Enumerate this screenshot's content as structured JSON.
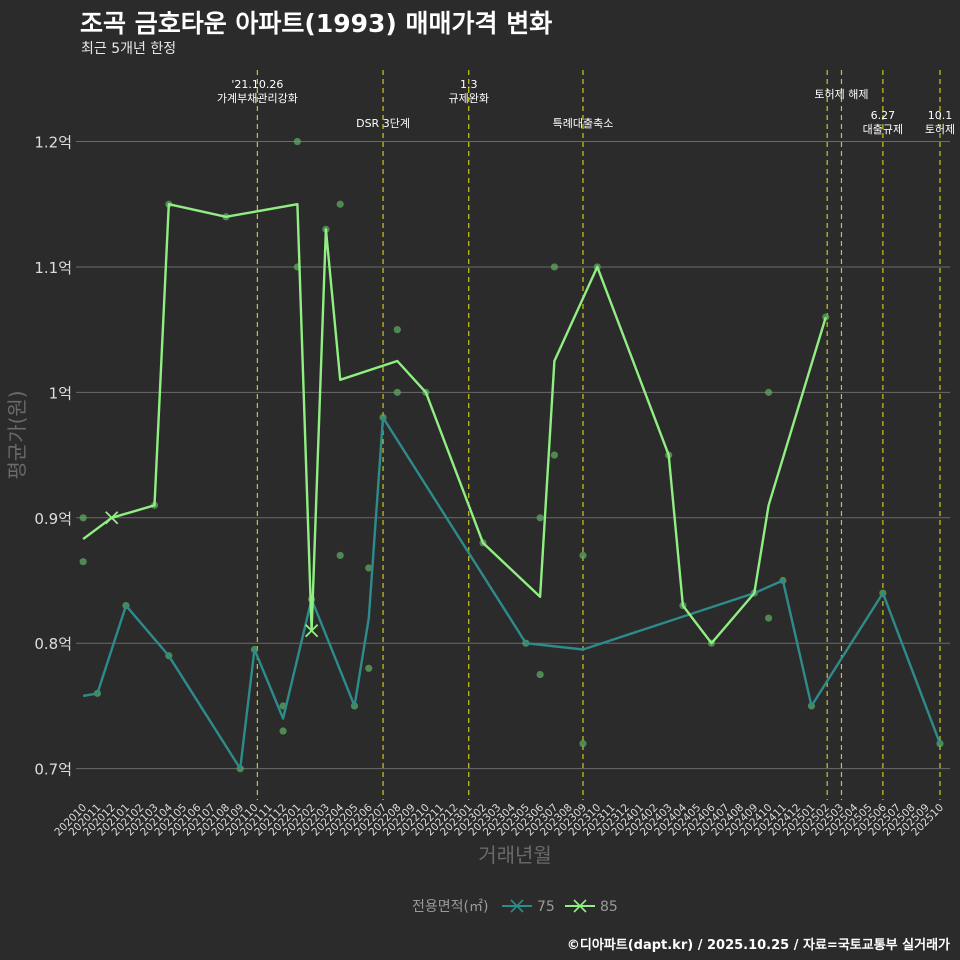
{
  "title": "조곡 금호타운 아파트(1993) 매매가격 변화",
  "subtitle": "최근 5개년 한정",
  "caption": "©디아파트(dapt.kr) / 2025.10.25 / 자료=국토교통부 실거래가",
  "colors": {
    "background": "#2b2b2b",
    "grid": "#6b6b6b",
    "series_75": "#2e8b8b",
    "series_85": "#90ee82",
    "points": "#5ea860",
    "event_line": "#c8c820"
  },
  "chart_data": {
    "type": "line",
    "title": "조곡 금호타운 아파트(1993) 매매가격 변화",
    "xlabel": "거래년월",
    "ylabel": "평균가(원)",
    "ylim": [
      0.675,
      1.265
    ],
    "xlim": [
      -0.5,
      60.7
    ],
    "y_ticks": [
      {
        "value": 0.7,
        "label": "0.7억"
      },
      {
        "value": 0.8,
        "label": "0.8억"
      },
      {
        "value": 0.9,
        "label": "0.9억"
      },
      {
        "value": 1.0,
        "label": "1억"
      },
      {
        "value": 1.1,
        "label": "1.1억"
      },
      {
        "value": 1.2,
        "label": "1.2억"
      }
    ],
    "x_ticks": [
      "202010",
      "202011",
      "202012",
      "202101",
      "202102",
      "202103",
      "202104",
      "202105",
      "202106",
      "202107",
      "202108",
      "202109",
      "202110",
      "202111",
      "202112",
      "202201",
      "202202",
      "202203",
      "202204",
      "202205",
      "202206",
      "202207",
      "202208",
      "202209",
      "202210",
      "202211",
      "202212",
      "202301",
      "202302",
      "202303",
      "202304",
      "202305",
      "202306",
      "202307",
      "202308",
      "202309",
      "202310",
      "202311",
      "202312",
      "202401",
      "202402",
      "202403",
      "202404",
      "202405",
      "202406",
      "202407",
      "202408",
      "202409",
      "202410",
      "202411",
      "202412",
      "202501",
      "202502",
      "202503",
      "202504",
      "202505",
      "202506",
      "202507",
      "202508",
      "202509",
      "202510"
    ],
    "legend": {
      "title": "전용면적(㎡)",
      "items": [
        "75",
        "85"
      ]
    },
    "series": [
      {
        "name": "75",
        "color": "#2e8b8b",
        "points": [
          [
            0,
            0.758
          ],
          [
            1,
            0.76
          ],
          [
            3,
            0.83
          ],
          [
            6,
            0.79
          ],
          [
            11,
            0.7
          ],
          [
            12,
            0.795
          ],
          [
            14,
            0.74
          ],
          [
            16,
            0.835
          ],
          [
            19,
            0.75
          ],
          [
            20,
            0.82
          ],
          [
            21,
            0.98
          ],
          [
            31,
            0.8
          ],
          [
            35,
            0.795
          ],
          [
            47,
            0.84
          ],
          [
            49,
            0.85
          ],
          [
            51,
            0.75
          ],
          [
            56,
            0.84
          ],
          [
            60,
            0.72
          ]
        ]
      },
      {
        "name": "85",
        "color": "#90ee82",
        "points": [
          [
            0,
            0.883
          ],
          [
            2,
            0.9
          ],
          [
            5,
            0.91
          ],
          [
            6,
            1.15
          ],
          [
            10,
            1.14
          ],
          [
            15,
            1.15
          ],
          [
            16,
            0.81
          ],
          [
            17,
            1.13
          ],
          [
            18,
            1.01
          ],
          [
            22,
            1.025
          ],
          [
            24,
            1.0
          ],
          [
            28,
            0.88
          ],
          [
            32,
            0.837
          ],
          [
            33,
            1.025
          ],
          [
            36,
            1.1
          ],
          [
            41,
            0.95
          ],
          [
            42,
            0.83
          ],
          [
            44,
            0.8
          ],
          [
            47,
            0.84
          ],
          [
            48,
            0.91
          ],
          [
            52,
            1.06
          ]
        ]
      }
    ],
    "markers": [
      {
        "series": "85",
        "x": 2,
        "y": 0.9
      },
      {
        "series": "85",
        "x": 16,
        "y": 0.81
      }
    ],
    "scatter_points": [
      [
        0,
        0.9
      ],
      [
        0,
        0.865
      ],
      [
        1,
        0.76
      ],
      [
        3,
        0.83
      ],
      [
        5,
        0.91
      ],
      [
        6,
        1.15
      ],
      [
        6,
        0.79
      ],
      [
        10,
        1.14
      ],
      [
        11,
        0.7
      ],
      [
        12,
        0.795
      ],
      [
        14,
        0.75
      ],
      [
        14,
        0.73
      ],
      [
        15,
        1.2
      ],
      [
        15,
        1.1
      ],
      [
        16,
        0.835
      ],
      [
        17,
        1.13
      ],
      [
        18,
        1.15
      ],
      [
        18,
        0.87
      ],
      [
        19,
        0.75
      ],
      [
        20,
        0.86
      ],
      [
        20,
        0.78
      ],
      [
        21,
        0.98
      ],
      [
        22,
        1.05
      ],
      [
        22,
        1.0
      ],
      [
        24,
        1.0
      ],
      [
        28,
        0.88
      ],
      [
        31,
        0.8
      ],
      [
        32,
        0.9
      ],
      [
        32,
        0.775
      ],
      [
        33,
        1.1
      ],
      [
        33,
        0.95
      ],
      [
        35,
        0.87
      ],
      [
        35,
        0.72
      ],
      [
        36,
        1.1
      ],
      [
        41,
        0.95
      ],
      [
        42,
        0.83
      ],
      [
        44,
        0.8
      ],
      [
        47,
        0.84
      ],
      [
        48,
        1.0
      ],
      [
        48,
        0.82
      ],
      [
        49,
        0.85
      ],
      [
        51,
        0.75
      ],
      [
        52,
        1.06
      ],
      [
        56,
        0.84
      ],
      [
        60,
        0.72
      ]
    ],
    "events": [
      {
        "x": 12.2,
        "lines": [
          "'21.10.26",
          "가계부채관리강화"
        ],
        "row": 0
      },
      {
        "x": 21.0,
        "lines": [
          "DSR 3단계"
        ],
        "row": 2
      },
      {
        "x": 27.0,
        "lines": [
          "1.3",
          "규제완화"
        ],
        "row": 0
      },
      {
        "x": 35.0,
        "lines": [
          "특례대출축소"
        ],
        "row": 2
      },
      {
        "x": 52.1,
        "lines": [],
        "row": 0
      },
      {
        "x": 53.1,
        "lines": [
          "토허제 해제"
        ],
        "row": 1
      },
      {
        "x": 56.0,
        "lines": [
          "6.27",
          "대출규제"
        ],
        "row": 3
      },
      {
        "x": 60.0,
        "lines": [
          "10.1",
          "토허제"
        ],
        "row": 3
      }
    ]
  }
}
